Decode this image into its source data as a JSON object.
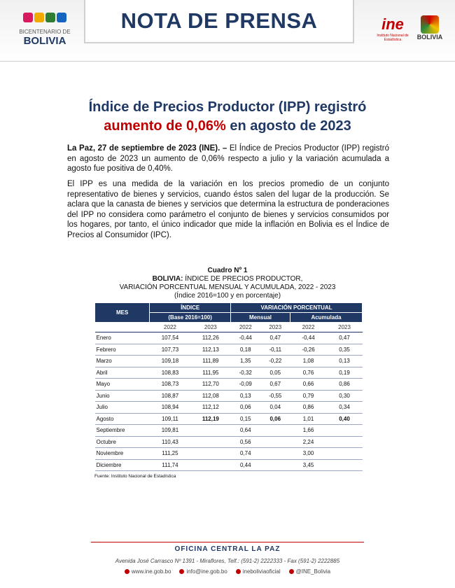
{
  "header": {
    "left_logo": {
      "line1": "BICENTENARIO DE",
      "line2": "BOLIVIA"
    },
    "title": "NOTA DE PRENSA",
    "ine_logo": {
      "name": "ine",
      "subtitle": "Instituto Nacional de Estadística"
    },
    "right_logo": {
      "name": "BOLIVIA"
    }
  },
  "headline": {
    "line1": "Índice de Precios Productor (IPP) registró",
    "highlight": "aumento de 0,06%",
    "rest": " en agosto de 2023"
  },
  "paragraphs": [
    {
      "lead": "La Paz, 27 de septiembre de 2023 (INE). –",
      "text": " El Índice de Precios Productor (IPP) registró en agosto de 2023 un aumento de 0,06% respecto a julio y la variación acumulada a agosto fue positiva de 0,40%."
    },
    {
      "text": "El IPP es una medida de la variación en los precios promedio de un conjunto representativo de bienes y servicios, cuando éstos salen del lugar de la producción. Se aclara que la canasta de bienes y servicios que determina la estructura de ponderaciones del IPP no considera como parámetro el conjunto de bienes y servicios consumidos por los hogares, por tanto, el único indicador que mide la inflación en Bolivia es el Índice de Precios al Consumidor (IPC)."
    }
  ],
  "table": {
    "caption": {
      "number": "Cuadro Nº 1",
      "country": "BOLIVIA:",
      "title1": " ÍNDICE DE PRECIOS PRODUCTOR,",
      "title2": "VARIACIÓN PORCENTUAL MENSUAL Y ACUMULADA, 2022 - 2023",
      "note": "(Índice 2016=100 y en porcentaje)"
    },
    "header": {
      "mes": "MES",
      "indice": "ÍNDICE",
      "base": "(Base 2016=100)",
      "variacion": "VARIACIÓN PORCENTUAL",
      "mensual": "Mensual",
      "acumulada": "Acumulada",
      "years": [
        "2022",
        "2023",
        "2022",
        "2023",
        "2022",
        "2023"
      ]
    },
    "rows": [
      [
        "Enero",
        "107,54",
        "112,26",
        "-0,44",
        "0,47",
        "-0,44",
        "0,47"
      ],
      [
        "Febrero",
        "107,73",
        "112,13",
        "0,18",
        "-0,11",
        "-0,26",
        "0,35"
      ],
      [
        "Marzo",
        "109,18",
        "111,89",
        "1,35",
        "-0,22",
        "1,08",
        "0,13"
      ],
      [
        "Abril",
        "108,83",
        "111,95",
        "-0,32",
        "0,05",
        "0,76",
        "0,19"
      ],
      [
        "Mayo",
        "108,73",
        "112,70",
        "-0,09",
        "0,67",
        "0,66",
        "0,86"
      ],
      [
        "Junio",
        "108,87",
        "112,08",
        "0,13",
        "-0,55",
        "0,79",
        "0,30"
      ],
      [
        "Julio",
        "108,94",
        "112,12",
        "0,06",
        "0,04",
        "0,86",
        "0,34"
      ],
      [
        "Agosto",
        "109,11",
        "112,19",
        "0,15",
        "0,06",
        "1,01",
        "0,40"
      ],
      [
        "Septiembre",
        "109,81",
        null,
        "0,64",
        null,
        "1,66",
        null
      ],
      [
        "Octubre",
        "110,43",
        null,
        "0,56",
        null,
        "2,24",
        null
      ],
      [
        "Noviembre",
        "111,25",
        null,
        "0,74",
        null,
        "3,00",
        null
      ],
      [
        "Diciembre",
        "111,74",
        null,
        "0,44",
        null,
        "3,45",
        null
      ]
    ],
    "source": "Fuente: Instituto Nacional de Estadística"
  },
  "footer": {
    "office": "OFICINA CENTRAL LA PAZ",
    "address": "Avenida José Carrasco Nº 1391 - Miraflores, Telf.: (591-2) 2222333 - Fax (591-2) 2222885",
    "contacts": [
      "www.ine.gob.bo",
      "info@ine.gob.bo",
      "ineboliviaoficial",
      "@INE_Bolivia"
    ]
  }
}
